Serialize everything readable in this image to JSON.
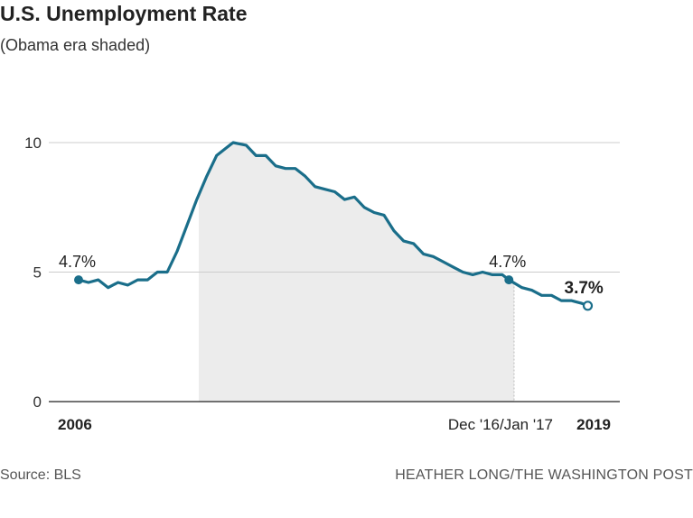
{
  "header": {
    "title": "U.S. Unemployment Rate",
    "subtitle": "(Obama era shaded)"
  },
  "footer": {
    "source": "Source: BLS",
    "credit": "HEATHER LONG/THE WASHINGTON POST"
  },
  "colors": {
    "line": "#1a6e8a",
    "shade": "#ececec",
    "grid": "#cccccc",
    "axis": "#222222"
  },
  "chart_data": {
    "type": "line",
    "title": "U.S. Unemployment Rate",
    "subtitle": "(Obama era shaded)",
    "xlabel": "",
    "ylabel": "",
    "ylim": [
      0,
      10
    ],
    "xlim": [
      2006.0,
      2019.0
    ],
    "yticks": [
      {
        "value": 0,
        "label": "0"
      },
      {
        "value": 5,
        "label": "5"
      },
      {
        "value": 10,
        "label": "10"
      }
    ],
    "xticks": [
      {
        "value": 2006.0,
        "label": "2006",
        "bold": true
      },
      {
        "value": 2017.0,
        "label": "Dec '16/Jan '17",
        "bold": false
      },
      {
        "value": 2019.0,
        "label": "2019",
        "bold": true
      }
    ],
    "shaded_range": {
      "start": 2009.05,
      "end": 2017.05,
      "label": "Obama era"
    },
    "series": [
      {
        "name": "Unemployment rate",
        "x": [
          2006.0,
          2006.25,
          2006.5,
          2006.75,
          2007.0,
          2007.25,
          2007.5,
          2007.75,
          2008.0,
          2008.25,
          2008.5,
          2008.75,
          2009.0,
          2009.25,
          2009.5,
          2009.75,
          2009.92,
          2010.25,
          2010.5,
          2010.75,
          2011.0,
          2011.25,
          2011.5,
          2011.75,
          2012.0,
          2012.25,
          2012.5,
          2012.75,
          2013.0,
          2013.25,
          2013.5,
          2013.75,
          2014.0,
          2014.25,
          2014.5,
          2014.75,
          2015.0,
          2015.25,
          2015.5,
          2015.75,
          2016.0,
          2016.25,
          2016.5,
          2016.75,
          2016.92,
          2017.25,
          2017.5,
          2017.75,
          2018.0,
          2018.25,
          2018.5,
          2018.75,
          2018.92
        ],
        "values": [
          4.7,
          4.6,
          4.7,
          4.4,
          4.6,
          4.5,
          4.7,
          4.7,
          5.0,
          5.0,
          5.8,
          6.8,
          7.8,
          8.7,
          9.5,
          9.8,
          10.0,
          9.9,
          9.5,
          9.5,
          9.1,
          9.0,
          9.0,
          8.7,
          8.3,
          8.2,
          8.1,
          7.8,
          7.9,
          7.5,
          7.3,
          7.2,
          6.6,
          6.2,
          6.1,
          5.7,
          5.6,
          5.4,
          5.2,
          5.0,
          4.9,
          5.0,
          4.9,
          4.9,
          4.7,
          4.4,
          4.3,
          4.1,
          4.1,
          3.9,
          3.9,
          3.8,
          3.7
        ]
      }
    ],
    "annotations": [
      {
        "label": "4.7%",
        "x": 2006.0,
        "y": 4.7,
        "bold": false,
        "marker": "filled"
      },
      {
        "label": "4.7%",
        "x": 2016.92,
        "y": 4.7,
        "bold": false,
        "marker": "filled"
      },
      {
        "label": "3.7%",
        "x": 2018.92,
        "y": 3.7,
        "bold": true,
        "marker": "open"
      }
    ]
  }
}
